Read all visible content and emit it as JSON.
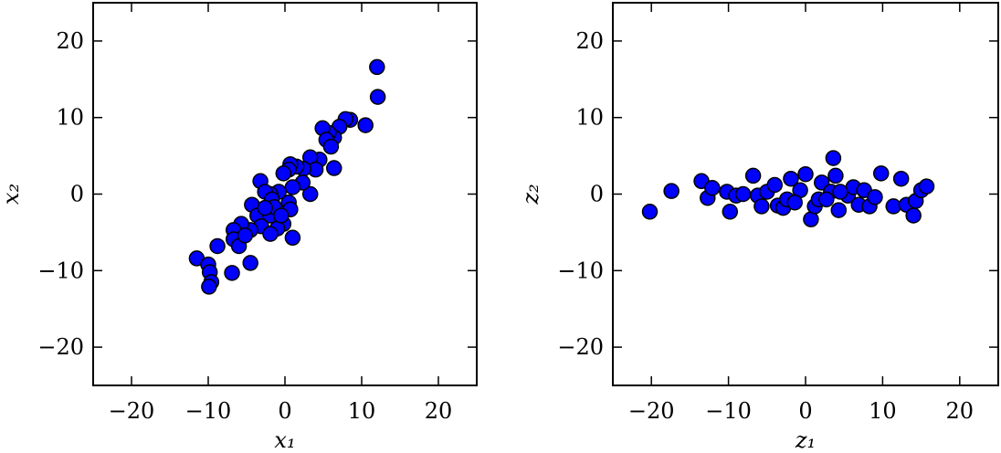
{
  "chart_data": [
    {
      "type": "scatter",
      "xlabel": "x₁",
      "ylabel": "x₂",
      "color": "#0000ff",
      "xlim": [
        -25,
        25
      ],
      "ylim": [
        -25,
        25
      ],
      "xticks": [
        {
          "value": -20,
          "label": "−20"
        },
        {
          "value": -10,
          "label": "−10"
        },
        0,
        10,
        20
      ],
      "yticks": [
        {
          "value": -20,
          "label": "−20"
        },
        {
          "value": -10,
          "label": "−10"
        },
        0,
        10,
        20
      ],
      "x": [
        12.0,
        12.1,
        10.5,
        8.5,
        7.9,
        7.1,
        6.4,
        5.7,
        4.9,
        5.4,
        6.0,
        6.4,
        4.5,
        3.3,
        4.0,
        2.4,
        1.5,
        0.7,
        0.5,
        -0.2,
        3.3,
        2.3,
        1.0,
        -0.8,
        -1.9,
        -3.2,
        -2.6,
        -1.7,
        -4.3,
        -3.6,
        -1.9,
        -1.4,
        0.5,
        0.7,
        -0.2,
        -1.0,
        1.0,
        -3.1,
        -4.5,
        -5.7,
        -6.7,
        -6.7,
        -6.0,
        -4.5,
        -6.9,
        -8.8,
        -11.5,
        -10.0,
        -9.8,
        -9.6,
        -9.9,
        -1.9,
        -0.5,
        -2.6,
        -5.2
      ],
      "values": [
        16.6,
        12.7,
        9.0,
        9.7,
        9.8,
        8.8,
        7.4,
        8.0,
        8.6,
        7.1,
        6.2,
        3.4,
        4.5,
        4.8,
        3.2,
        3.3,
        3.6,
        3.9,
        3.2,
        2.7,
        0.0,
        1.5,
        0.9,
        0.3,
        0.0,
        1.7,
        0.3,
        -0.7,
        -1.4,
        -2.8,
        -2.8,
        -1.7,
        -1.1,
        -2.0,
        -3.9,
        -4.5,
        -5.7,
        -4.2,
        -4.7,
        -3.9,
        -4.7,
        -5.9,
        -6.8,
        -9.0,
        -10.3,
        -6.8,
        -8.4,
        -9.2,
        -10.2,
        -11.5,
        -12.1,
        -5.2,
        -2.8,
        -1.8,
        -5.4
      ]
    },
    {
      "type": "scatter",
      "xlabel": "z₁",
      "ylabel": "z₂",
      "color": "#0000ff",
      "xlim": [
        -25,
        25
      ],
      "ylim": [
        -25,
        25
      ],
      "xticks": [
        {
          "value": -20,
          "label": "−20"
        },
        {
          "value": -10,
          "label": "−10"
        },
        0,
        10,
        20
      ],
      "yticks": [
        {
          "value": -20,
          "label": "−20"
        },
        {
          "value": -10,
          "label": "−10"
        },
        0,
        10,
        20
      ],
      "x": [
        -20.2,
        -17.4,
        -13.5,
        -12.7,
        -12.1,
        -10.2,
        -9.8,
        -9.0,
        -8.1,
        -6.8,
        -6.2,
        -5.0,
        -4.0,
        -3.6,
        -2.9,
        -2.4,
        -1.9,
        -0.7,
        0.0,
        0.7,
        1.2,
        1.7,
        2.1,
        3.3,
        3.6,
        3.9,
        4.3,
        5.5,
        6.2,
        6.9,
        7.6,
        8.3,
        9.0,
        9.8,
        11.4,
        12.4,
        13.1,
        14.0,
        14.3,
        15.0,
        15.7,
        -5.7,
        -1.4,
        2.7,
        4.5
      ],
      "values": [
        -2.3,
        0.4,
        1.7,
        -0.5,
        0.8,
        0.3,
        -2.3,
        -0.2,
        0.0,
        2.4,
        -0.2,
        0.3,
        1.2,
        -1.5,
        -1.8,
        -0.7,
        2.0,
        0.5,
        2.6,
        -3.3,
        -1.6,
        -0.7,
        1.5,
        0.3,
        4.7,
        2.4,
        -2.1,
        -0.2,
        0.9,
        -1.4,
        0.5,
        -1.6,
        -0.4,
        2.7,
        -1.6,
        2.0,
        -1.4,
        -2.8,
        -0.9,
        0.5,
        1.0,
        -1.6,
        -1.1,
        -0.7,
        0.3
      ]
    }
  ]
}
